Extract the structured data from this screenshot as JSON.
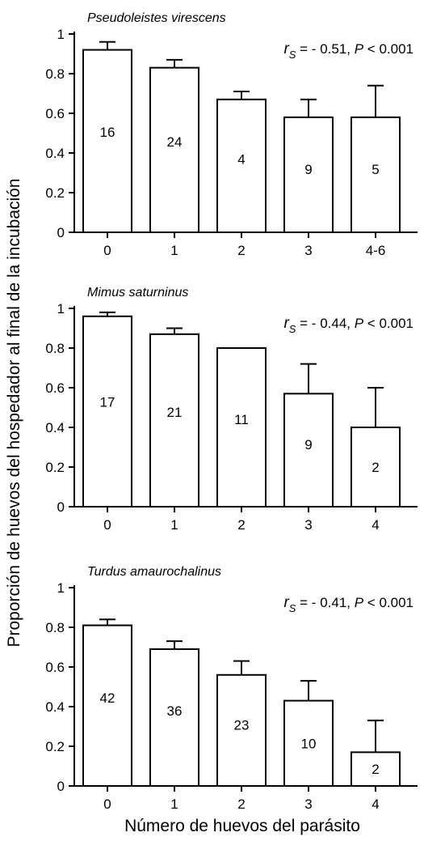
{
  "chart_data": [
    {
      "type": "bar",
      "title": "Pseudoleistes virescens",
      "annotation": {
        "stat_symbol": "r",
        "stat_subscript": "S",
        "rho": "= - 0.51, ",
        "p_symbol": "P",
        "p_text": " < 0.001"
      },
      "categories": [
        "0",
        "1",
        "2",
        "3",
        "4-6"
      ],
      "values": [
        0.92,
        0.83,
        0.67,
        0.58,
        0.58
      ],
      "errors": [
        0.04,
        0.04,
        0.04,
        0.09,
        0.16
      ],
      "sample_sizes": [
        "16",
        "24",
        "4",
        "9",
        "5"
      ],
      "ylim": [
        0,
        1
      ],
      "yticks": [
        "0",
        "0.2",
        "0.4",
        "0.6",
        "0.8",
        "1"
      ]
    },
    {
      "type": "bar",
      "title": "Mimus saturninus",
      "annotation": {
        "stat_symbol": "r",
        "stat_subscript": "S",
        "rho": "= - 0.44, ",
        "p_symbol": "P",
        "p_text": " < 0.001"
      },
      "categories": [
        "0",
        "1",
        "2",
        "3",
        "4"
      ],
      "values": [
        0.96,
        0.87,
        0.8,
        0.57,
        0.4
      ],
      "errors": [
        0.02,
        0.03,
        0,
        0.15,
        0.2
      ],
      "sample_sizes": [
        "17",
        "21",
        "11",
        "9",
        "2"
      ],
      "ylim": [
        0,
        1
      ],
      "yticks": [
        "0",
        "0.2",
        "0.4",
        "0.6",
        "0.8",
        "1"
      ]
    },
    {
      "type": "bar",
      "title": "Turdus amaurochalinus",
      "annotation": {
        "stat_symbol": "r",
        "stat_subscript": "S",
        "rho": "= - 0.41, ",
        "p_symbol": "P",
        "p_text": " < 0.001"
      },
      "categories": [
        "0",
        "1",
        "2",
        "3",
        "4"
      ],
      "values": [
        0.81,
        0.69,
        0.56,
        0.43,
        0.17
      ],
      "errors": [
        0.03,
        0.04,
        0.07,
        0.1,
        0.16
      ],
      "sample_sizes": [
        "42",
        "36",
        "23",
        "10",
        "2"
      ],
      "ylim": [
        0,
        1
      ],
      "yticks": [
        "0",
        "0.2",
        "0.4",
        "0.6",
        "0.8",
        "1"
      ]
    }
  ],
  "ylabel": "Proporción de huevos del hospedador al final de la incubación",
  "xlabel": "Número de huevos del parásito"
}
